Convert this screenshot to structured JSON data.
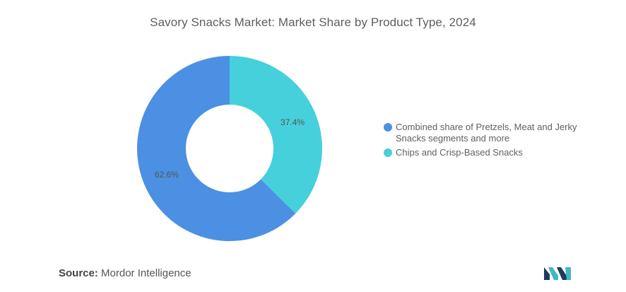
{
  "chart_data": {
    "type": "pie",
    "subtype": "donut",
    "title": "Savory Snacks Market: Market Share by Product Type, 2024",
    "categories": [
      "Chips and Crisp-Based Snacks",
      "Combined share of Pretzels, Meat and Jerky Snacks segments and more"
    ],
    "values": [
      37.4,
      62.6
    ],
    "value_labels": [
      "37.4%",
      "62.6%"
    ],
    "colors": [
      "#45D0DC",
      "#4B90E2"
    ],
    "legend": {
      "placement": "right",
      "entries": [
        {
          "label": "Combined share of Pretzels, Meat and Jerky Snacks segments and more",
          "color": "#4B90E2"
        },
        {
          "label": "Chips and Crisp-Based Snacks",
          "color": "#45D0DC"
        }
      ]
    }
  },
  "footer": {
    "source_label": "Source:",
    "source_value": "Mordor Intelligence"
  },
  "logo": {
    "icon": "mordor-intelligence-logo-icon",
    "colors": [
      "#1F3B5C",
      "#3FB8C6"
    ]
  }
}
